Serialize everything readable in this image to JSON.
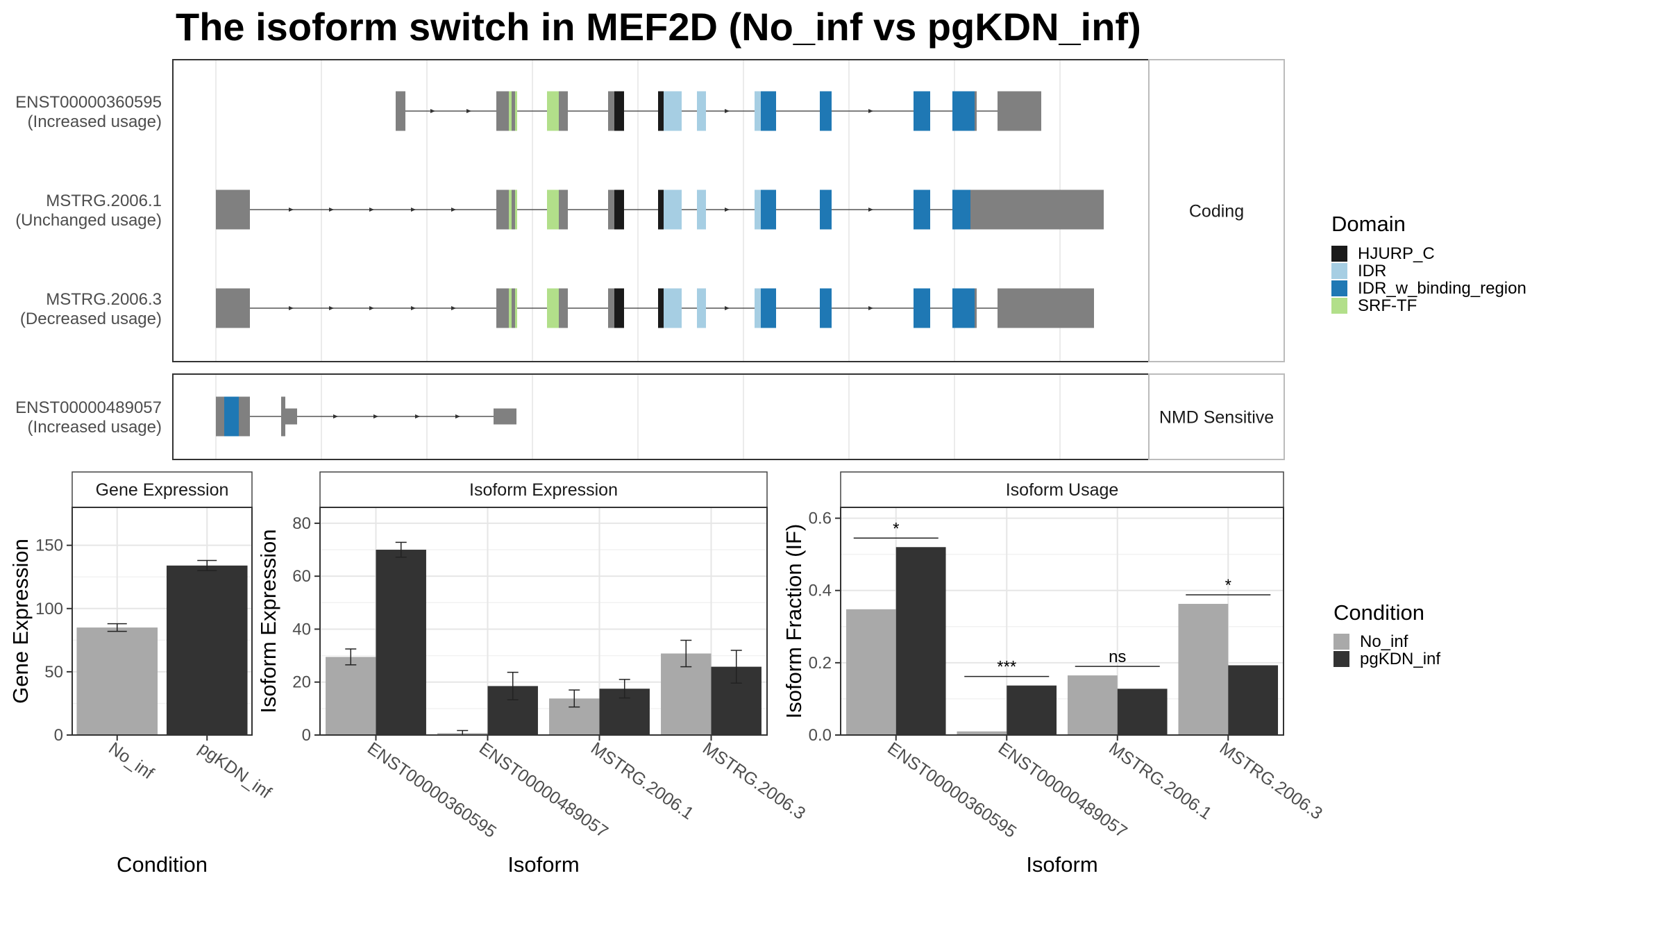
{
  "title": "The isoform switch in MEF2D (No_inf vs pgKDN_inf)",
  "colors": {
    "exon": "#808080",
    "HJURP_C": "#1a1a1a",
    "IDR": "#a6cee3",
    "IDR_w_binding_region": "#1f78b4",
    "SRF-TF": "#b2df8a",
    "No_inf": "#a9a9a9",
    "pgKDN_inf": "#333333"
  },
  "structure": {
    "facets": [
      {
        "label": "Coding",
        "tracks": [
          0,
          1,
          2
        ]
      },
      {
        "label": "NMD Sensitive",
        "tracks": [
          3
        ]
      }
    ],
    "tracks": [
      {
        "name": "ENST00000360595",
        "usage": "(Increased usage)"
      },
      {
        "name": "MSTRG.2006.1",
        "usage": "(Unchanged usage)"
      },
      {
        "name": "MSTRG.2006.3",
        "usage": "(Decreased usage)"
      },
      {
        "name": "ENST00000489057",
        "usage": "(Increased usage)"
      }
    ],
    "legend": {
      "title": "Domain",
      "items": [
        "HJURP_C",
        "IDR",
        "IDR_w_binding_region",
        "SRF-TF"
      ]
    }
  },
  "chart_data": [
    {
      "type": "bar",
      "panel": "Gene Expression",
      "xlabel": "Condition",
      "ylabel": "Gene Expression",
      "categories": [
        "No_inf",
        "pgKDN_inf"
      ],
      "values": [
        85,
        134
      ],
      "errors": [
        3,
        4
      ],
      "ylim": [
        0,
        180
      ],
      "yticks": [
        0,
        50,
        100,
        150
      ]
    },
    {
      "type": "bar",
      "panel": "Isoform Expression",
      "xlabel": "Isoform",
      "ylabel": "Isoform Expression",
      "categories": [
        "ENST00000360595",
        "ENST00000489057",
        "MSTRG.2006.1",
        "MSTRG.2006.3"
      ],
      "series": [
        {
          "name": "No_inf",
          "values": [
            29.5,
            0.7,
            13.8,
            30.8
          ],
          "errors": [
            3.0,
            1.0,
            3.2,
            5.0
          ]
        },
        {
          "name": "pgKDN_inf",
          "values": [
            70,
            18.5,
            17.5,
            25.8
          ],
          "errors": [
            2.8,
            5.2,
            3.5,
            6.2
          ]
        }
      ],
      "ylim": [
        0,
        86
      ],
      "yticks": [
        0,
        20,
        40,
        60,
        80
      ]
    },
    {
      "type": "bar",
      "panel": "Isoform Usage",
      "xlabel": "Isoform",
      "ylabel": "Isoform Fraction (IF)",
      "categories": [
        "ENST00000360595",
        "ENST00000489057",
        "MSTRG.2006.1",
        "MSTRG.2006.3"
      ],
      "series": [
        {
          "name": "No_inf",
          "values": [
            0.348,
            0.01,
            0.165,
            0.363
          ]
        },
        {
          "name": "pgKDN_inf",
          "values": [
            0.52,
            0.137,
            0.128,
            0.193
          ]
        }
      ],
      "significance": [
        "*",
        "***",
        "ns",
        "*"
      ],
      "ylim": [
        0,
        0.63
      ],
      "yticks": [
        0.0,
        0.2,
        0.4,
        0.6
      ],
      "ytick_labels": [
        "0.0",
        "0.2",
        "0.4",
        "0.6"
      ],
      "legend": {
        "title": "Condition",
        "items": [
          "No_inf",
          "pgKDN_inf"
        ]
      }
    }
  ]
}
